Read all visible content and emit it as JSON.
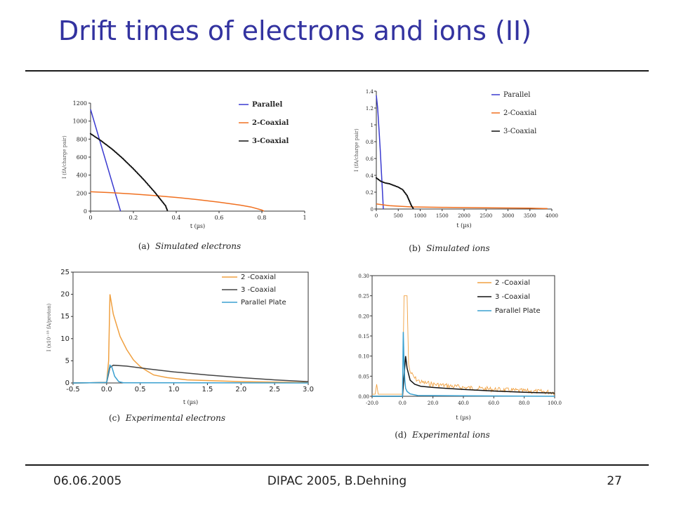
{
  "slide": {
    "title": "Drift times of electrons and ions (II)",
    "footer_date": "06.06.2005",
    "footer_center": "DIPAC 2005, B.Dehning",
    "page_number": "27"
  },
  "chart_data": [
    {
      "id": "a",
      "type": "line",
      "caption_label": "(a)",
      "caption_text": "Simulated electrons",
      "xlabel": "t (µs)",
      "ylabel": "I (fA/charge pair)",
      "xlim": [
        0,
        1
      ],
      "ylim": [
        0,
        1200
      ],
      "xticks": [
        0,
        0.2,
        0.4,
        0.6,
        0.8,
        1
      ],
      "xtick_labels": [
        "0",
        "0.2",
        "0.4",
        "0.6",
        "0.8",
        "1"
      ],
      "yticks": [
        0,
        200,
        400,
        600,
        800,
        1000,
        1200
      ],
      "ytick_labels": [
        "0",
        "200",
        "400",
        "600",
        "800",
        "1000",
        "1200"
      ],
      "legend_position": "top-right",
      "series": [
        {
          "name": "Parallel",
          "color": "#3a3ad0",
          "x": [
            0,
            0.14
          ],
          "y": [
            1130,
            0
          ]
        },
        {
          "name": "2-Coaxial",
          "color": "#f07020",
          "x": [
            0,
            0.1,
            0.2,
            0.3,
            0.4,
            0.5,
            0.6,
            0.7,
            0.75,
            0.8,
            0.81
          ],
          "y": [
            215,
            205,
            190,
            172,
            152,
            128,
            100,
            66,
            45,
            12,
            0
          ]
        },
        {
          "name": "3-Coaxial",
          "color": "#111111",
          "marker": "dots",
          "x": [
            0,
            0.05,
            0.1,
            0.15,
            0.2,
            0.25,
            0.3,
            0.35,
            0.36
          ],
          "y": [
            860,
            780,
            690,
            585,
            470,
            345,
            210,
            60,
            0
          ]
        }
      ]
    },
    {
      "id": "b",
      "type": "line",
      "caption_label": "(b)",
      "caption_text": "Simulated ions",
      "xlabel": "t (µs)",
      "ylabel": "I (fA/charge pair)",
      "xlim": [
        0,
        4000
      ],
      "ylim": [
        0,
        1.4
      ],
      "xticks": [
        0,
        500,
        1000,
        1500,
        2000,
        2500,
        3000,
        3500,
        4000
      ],
      "xtick_labels": [
        "0",
        "500",
        "1000",
        "1500",
        "2000",
        "2500",
        "3000",
        "3500",
        "4000"
      ],
      "yticks": [
        0,
        0.2,
        0.4,
        0.6,
        0.8,
        1,
        1.2,
        1.4
      ],
      "ytick_labels": [
        "0",
        "0.2",
        "0.4",
        "0.6",
        "0.8",
        "1",
        "1.2",
        "1.4"
      ],
      "legend_position": "top-right",
      "series": [
        {
          "name": "Parallel",
          "color": "#3a3ad0",
          "x": [
            0,
            30,
            60,
            90,
            120,
            150,
            160
          ],
          "y": [
            1.35,
            1.2,
            0.95,
            0.7,
            0.4,
            0.1,
            0
          ]
        },
        {
          "name": "2-Coaxial",
          "color": "#f07020",
          "x": [
            0,
            300,
            800,
            1500,
            2500,
            3500,
            3900
          ],
          "y": [
            0.06,
            0.04,
            0.025,
            0.02,
            0.015,
            0.01,
            0.005
          ]
        },
        {
          "name": "3-Coaxial",
          "color": "#111111",
          "marker": "dots",
          "x": [
            0,
            100,
            200,
            300,
            400,
            500,
            600,
            700,
            750,
            800,
            850
          ],
          "y": [
            0.37,
            0.33,
            0.31,
            0.3,
            0.28,
            0.26,
            0.23,
            0.16,
            0.1,
            0.04,
            0
          ]
        }
      ]
    },
    {
      "id": "c",
      "type": "line",
      "caption_label": "(c)",
      "caption_text": "Experimental electrons",
      "xlabel": "t (µs)",
      "ylabel": "I (x10⁻¹⁸ fA/proton)",
      "xlim": [
        -0.5,
        3.0
      ],
      "ylim": [
        0,
        25
      ],
      "xticks": [
        -0.5,
        0.0,
        0.5,
        1.0,
        1.5,
        2.0,
        2.5,
        3.0
      ],
      "xtick_labels": [
        "-0.5",
        "0.0",
        "0.5",
        "1.0",
        "1.5",
        "2.0",
        "2.5",
        "3.0"
      ],
      "yticks": [
        0,
        5,
        10,
        15,
        20,
        25
      ],
      "ytick_labels": [
        "0",
        "5",
        "10",
        "15",
        "20",
        "25"
      ],
      "legend_position": "top-right",
      "series": [
        {
          "name": "2 -Coaxial",
          "color": "#f0a040",
          "x": [
            -0.5,
            0.0,
            0.03,
            0.05,
            0.1,
            0.2,
            0.3,
            0.4,
            0.5,
            0.6,
            0.7,
            0.9,
            1.2,
            2.0,
            3.0
          ],
          "y": [
            0,
            0.1,
            5,
            20,
            15.5,
            10.5,
            7.5,
            5.2,
            3.7,
            2.7,
            1.8,
            1.2,
            0.7,
            0.3,
            0.1
          ]
        },
        {
          "name": "3 -Coaxial",
          "color": "#444444",
          "x": [
            -0.5,
            0.0,
            0.05,
            0.1,
            0.3,
            0.6,
            1.0,
            1.5,
            2.0,
            2.5,
            3.0
          ],
          "y": [
            0,
            0.1,
            3.5,
            4.0,
            3.8,
            3.2,
            2.5,
            1.8,
            1.2,
            0.7,
            0.3
          ]
        },
        {
          "name": "Parallel Plate",
          "color": "#3aa0d0",
          "x": [
            -0.5,
            0.0,
            0.02,
            0.05,
            0.08,
            0.12,
            0.18,
            0.25,
            3.0
          ],
          "y": [
            0,
            0.1,
            2.0,
            4.0,
            3.5,
            1.5,
            0.3,
            0.05,
            0
          ]
        }
      ]
    },
    {
      "id": "d",
      "type": "line",
      "caption_label": "(d)",
      "caption_text": "Experimental ions",
      "xlabel": "t (µs)",
      "ylabel": "",
      "xlim": [
        -20.0,
        100.0
      ],
      "ylim": [
        0,
        0.3
      ],
      "xticks": [
        -20.0,
        0.0,
        20.0,
        40.0,
        60.0,
        80.0,
        100.0
      ],
      "xtick_labels": [
        "-20.0",
        "0.0",
        "20.0",
        "40.0",
        "60.0",
        "80.0",
        "100.0"
      ],
      "yticks": [
        0,
        0.05,
        0.1,
        0.15,
        0.2,
        0.25,
        0.3
      ],
      "ytick_labels": [
        "0.00",
        "0.05",
        "0.10",
        "0.15",
        "0.20",
        "0.25",
        "0.30"
      ],
      "legend_position": "top-right",
      "series": [
        {
          "name": "2 -Coaxial",
          "color": "#f0a040",
          "noisy": true,
          "x": [
            -20,
            -18,
            -17,
            -16,
            0,
            1,
            2,
            3,
            4,
            5,
            8,
            12,
            20,
            40,
            60,
            80,
            100
          ],
          "y": [
            0.005,
            0.005,
            0.03,
            0.005,
            0.005,
            0.25,
            0.25,
            0.25,
            0.08,
            0.06,
            0.045,
            0.035,
            0.03,
            0.022,
            0.017,
            0.013,
            0.01
          ]
        },
        {
          "name": "3 -Coaxial",
          "color": "#111111",
          "x": [
            -20,
            0,
            1,
            2,
            3,
            5,
            8,
            12,
            20,
            40,
            60,
            80,
            100
          ],
          "y": [
            0,
            0,
            0.05,
            0.1,
            0.07,
            0.04,
            0.03,
            0.025,
            0.022,
            0.017,
            0.013,
            0.01,
            0.008
          ]
        },
        {
          "name": "Parallel Plate",
          "color": "#3aa0d0",
          "x": [
            -20,
            0,
            0.5,
            1,
            1.5,
            2,
            3,
            5,
            10,
            100
          ],
          "y": [
            0,
            0,
            0.16,
            0.08,
            0.04,
            0.02,
            0.012,
            0.006,
            0.002,
            0
          ]
        }
      ]
    }
  ]
}
